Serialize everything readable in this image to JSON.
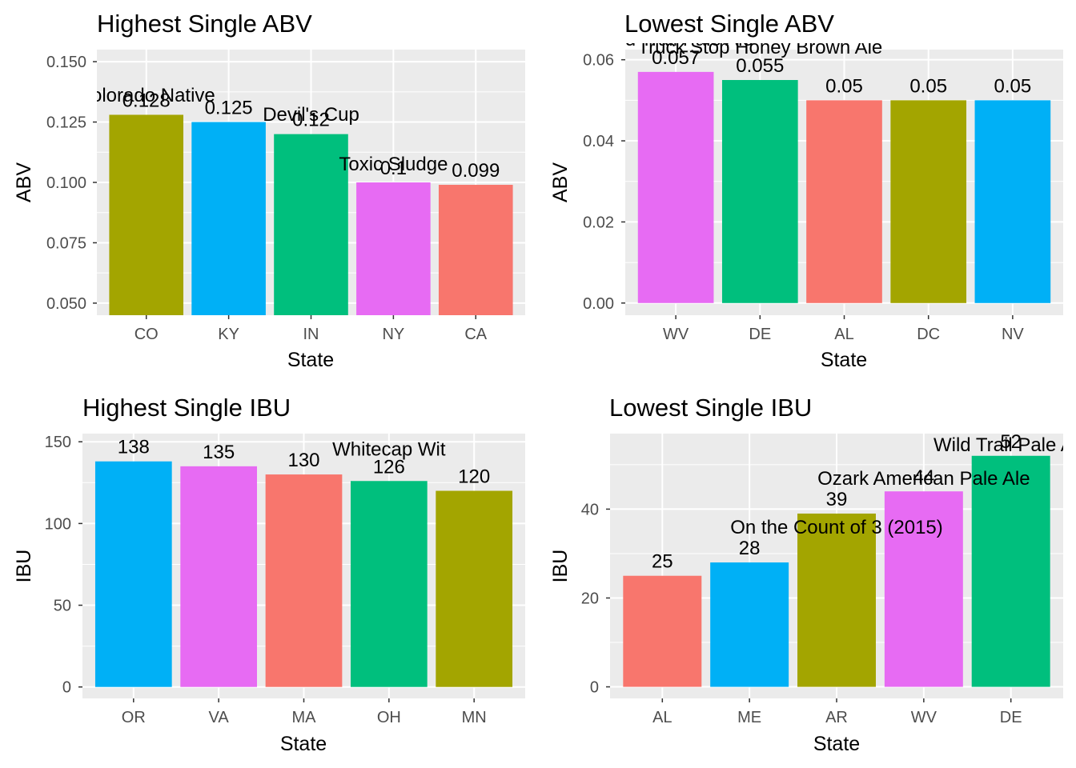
{
  "chart_data": [
    {
      "type": "bar",
      "title": "Highest Single ABV",
      "xlabel": "State",
      "ylabel": "ABV",
      "ylim": [
        0.045,
        0.155
      ],
      "yticks": [
        0.05,
        0.075,
        0.1,
        0.125,
        0.15
      ],
      "ytick_labels": [
        "0.050",
        "0.075",
        "0.100",
        "0.125",
        "0.150"
      ],
      "categories": [
        "CO",
        "KY",
        "IN",
        "NY",
        "CA"
      ],
      "values": [
        0.128,
        0.125,
        0.12,
        0.1,
        0.099
      ],
      "value_labels": [
        "0.128",
        "0.125",
        "0.12",
        "0.1",
        "0.099"
      ],
      "colors": [
        "#A3A500",
        "#00B0F6",
        "#00BF7D",
        "#E76BF3",
        "#F8766D"
      ],
      "beer_labels": [
        {
          "text": "Colorado Native",
          "category": "CO",
          "y": 0.1335
        },
        {
          "text": "Devil's Cup",
          "category": "IN",
          "y": 0.1255
        },
        {
          "text": "Toxic Sludge",
          "category": "NY",
          "y": 0.105
        }
      ]
    },
    {
      "type": "bar",
      "title": "Lowest Single ABV",
      "xlabel": "State",
      "ylabel": "ABV",
      "ylim": [
        -0.003,
        0.0625
      ],
      "yticks": [
        0,
        0.02,
        0.04,
        0.06
      ],
      "ytick_labels": [
        "0.00",
        "0.02",
        "0.04",
        "0.06"
      ],
      "categories": [
        "WV",
        "DE",
        "AL",
        "DC",
        "NV"
      ],
      "values": [
        0.057,
        0.055,
        0.05,
        0.05,
        0.05
      ],
      "value_labels": [
        "0.057",
        "0.055",
        "0.05",
        "0.05",
        "0.05"
      ],
      "colors": [
        "#E76BF3",
        "#00BF7D",
        "#F8766D",
        "#A3A500",
        "#00B0F6"
      ],
      "beer_labels": [
        {
          "text": "Wild Trail Pale Ale",
          "category": "WV",
          "y": 0.0635
        },
        {
          "text": "Truck Stop Honey Brown Ale",
          "category": "DE",
          "y": 0.0615
        }
      ]
    },
    {
      "type": "bar",
      "title": "Highest Single IBU",
      "xlabel": "State",
      "ylabel": "IBU",
      "ylim": [
        -7,
        155
      ],
      "yticks": [
        0,
        50,
        100,
        150
      ],
      "ytick_labels": [
        "0",
        "50",
        "100",
        "150"
      ],
      "categories": [
        "OR",
        "VA",
        "MA",
        "OH",
        "MN"
      ],
      "values": [
        138,
        135,
        130,
        126,
        120
      ],
      "value_labels": [
        "138",
        "135",
        "130",
        "126",
        "120"
      ],
      "colors": [
        "#00B0F6",
        "#E76BF3",
        "#F8766D",
        "#00BF7D",
        "#A3A500"
      ],
      "beer_labels": [
        {
          "text": "Whitecap Wit",
          "category": "OH",
          "y": 141.5
        }
      ]
    },
    {
      "type": "bar",
      "title": "Lowest Single IBU",
      "xlabel": "State",
      "ylabel": "IBU",
      "ylim": [
        -2.6,
        57
      ],
      "yticks": [
        0,
        20,
        40
      ],
      "ytick_labels": [
        "0",
        "20",
        "40"
      ],
      "categories": [
        "AL",
        "ME",
        "AR",
        "WV",
        "DE"
      ],
      "values": [
        25,
        28,
        39,
        44,
        52
      ],
      "value_labels": [
        "25",
        "28",
        "39",
        "44",
        "52"
      ],
      "colors": [
        "#F8766D",
        "#00B0F6",
        "#A3A500",
        "#E76BF3",
        "#00BF7D"
      ],
      "beer_labels": [
        {
          "text": "On the Count of 3 (2015)",
          "category": "AR",
          "y": 34.5
        },
        {
          "text": "Ozark American Pale Ale",
          "category": "WV",
          "y": 45.5
        },
        {
          "text": "Wild Trail Pale Ale",
          "category": "DE",
          "y": 53
        }
      ]
    }
  ]
}
